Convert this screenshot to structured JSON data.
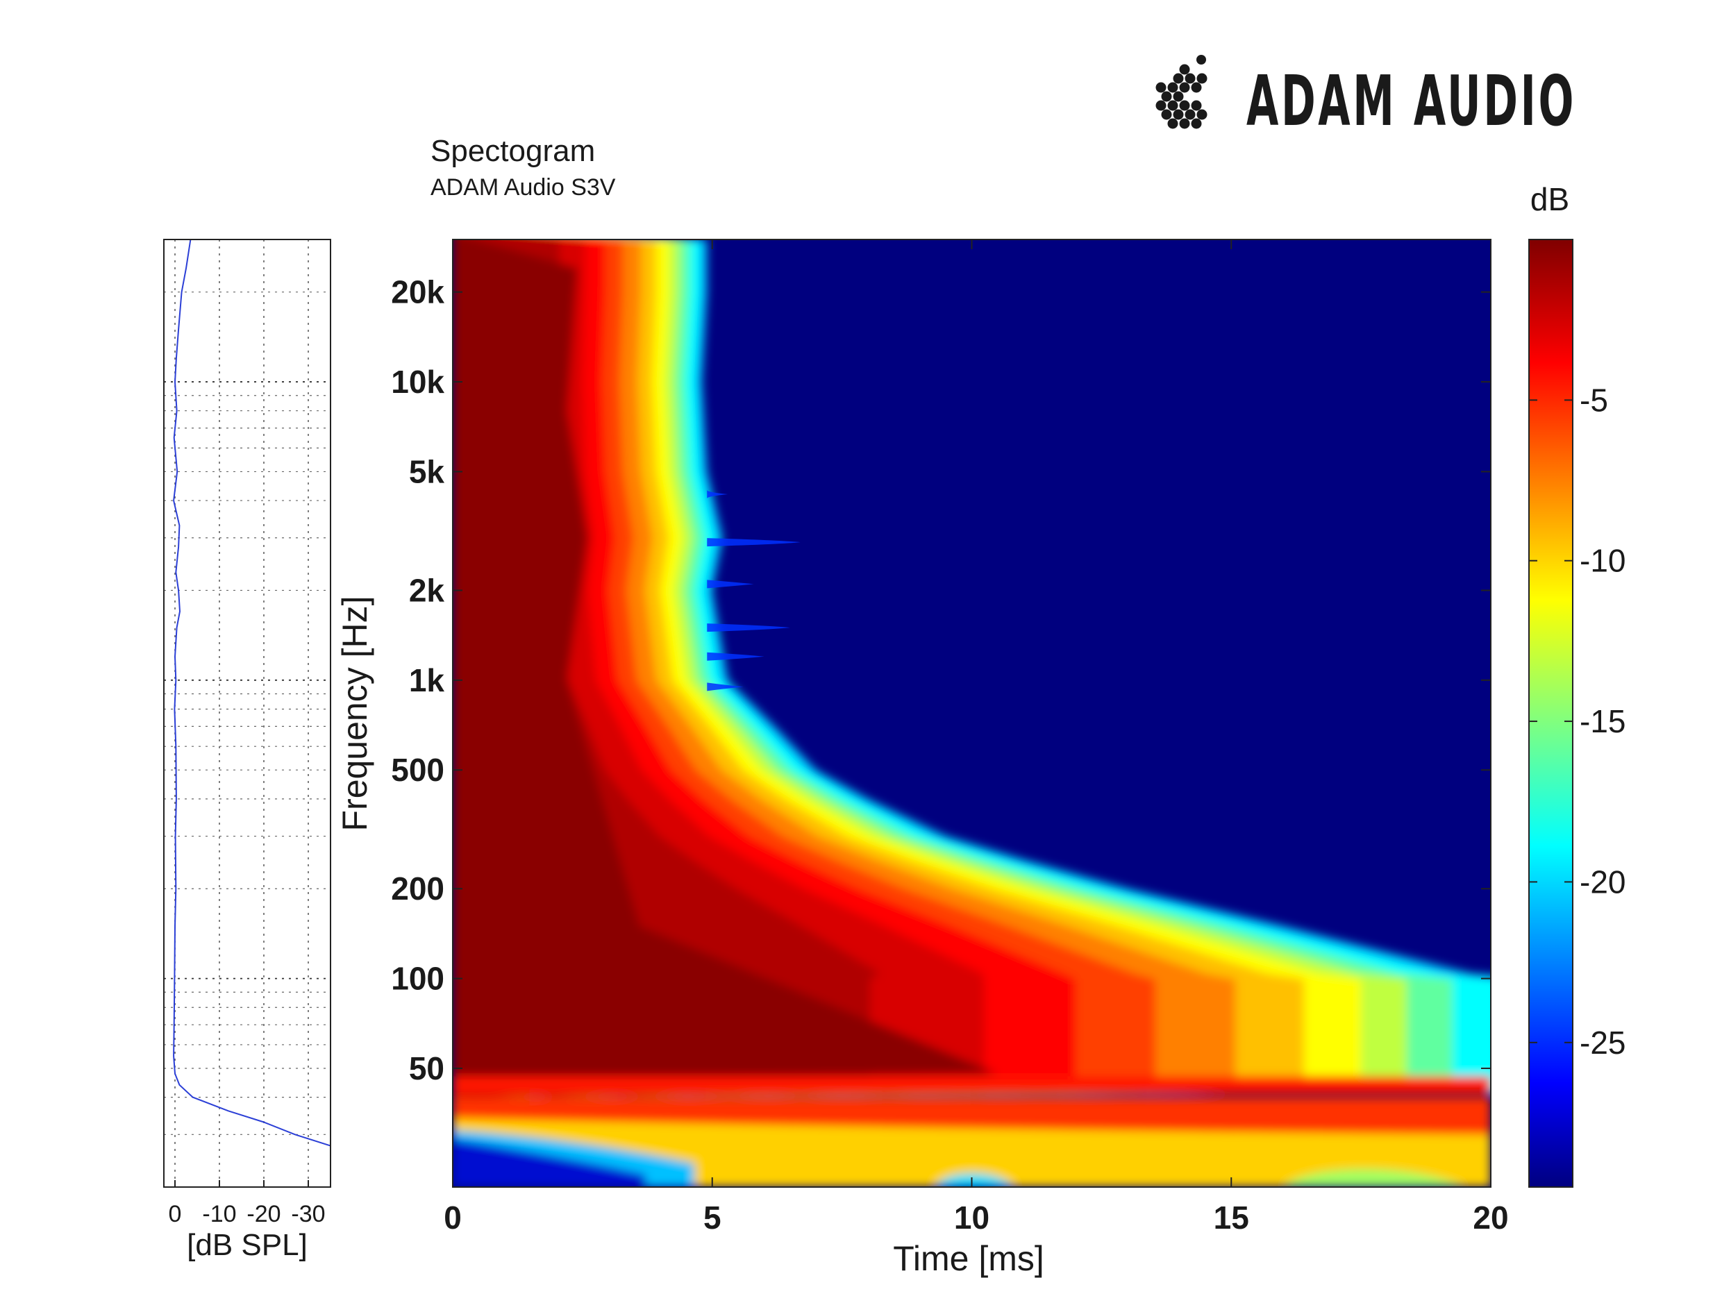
{
  "brand": {
    "name": "ADAM AUDIO",
    "logo_icon": "adam-dot-cluster-icon"
  },
  "header": {
    "title": "Spectogram",
    "subtitle": "ADAM Audio S3V"
  },
  "chart_data": [
    {
      "type": "line",
      "name": "frequency-response-side-plot",
      "xlabel": "[dB SPL]",
      "ylabel": "",
      "xlim": [
        2.5,
        -35
      ],
      "x_ticks": [
        0,
        -10,
        -20,
        -30
      ],
      "x_tick_labels": [
        "0",
        "-10",
        "-20",
        "-30"
      ],
      "y_scale": "log",
      "ylim": [
        20,
        30000
      ],
      "grid": true,
      "line_color": "#2b3fd6",
      "points": [
        {
          "freq": 30000,
          "db": -3.5
        },
        {
          "freq": 24000,
          "db": -2.5
        },
        {
          "freq": 20000,
          "db": -1.5
        },
        {
          "freq": 15000,
          "db": -0.8
        },
        {
          "freq": 12000,
          "db": -0.3
        },
        {
          "freq": 10000,
          "db": 0.0
        },
        {
          "freq": 8000,
          "db": -0.4
        },
        {
          "freq": 6500,
          "db": 0.2
        },
        {
          "freq": 5000,
          "db": -0.5
        },
        {
          "freq": 4000,
          "db": 0.3
        },
        {
          "freq": 3300,
          "db": -1.0
        },
        {
          "freq": 2800,
          "db": -0.8
        },
        {
          "freq": 2300,
          "db": -0.2
        },
        {
          "freq": 2000,
          "db": -0.8
        },
        {
          "freq": 1700,
          "db": -1.1
        },
        {
          "freq": 1500,
          "db": -0.4
        },
        {
          "freq": 1200,
          "db": 0.0
        },
        {
          "freq": 1000,
          "db": -0.2
        },
        {
          "freq": 800,
          "db": 0.1
        },
        {
          "freq": 600,
          "db": -0.2
        },
        {
          "freq": 400,
          "db": -0.3
        },
        {
          "freq": 300,
          "db": -0.1
        },
        {
          "freq": 200,
          "db": -0.2
        },
        {
          "freq": 150,
          "db": 0.0
        },
        {
          "freq": 100,
          "db": 0.1
        },
        {
          "freq": 70,
          "db": 0.2
        },
        {
          "freq": 55,
          "db": 0.3
        },
        {
          "freq": 48,
          "db": 0.0
        },
        {
          "freq": 44,
          "db": -1.0
        },
        {
          "freq": 40,
          "db": -4.0
        },
        {
          "freq": 36,
          "db": -12.0
        },
        {
          "freq": 33,
          "db": -20.0
        },
        {
          "freq": 30,
          "db": -27.0
        },
        {
          "freq": 27.5,
          "db": -35.0
        }
      ]
    },
    {
      "type": "heatmap",
      "name": "spectrogram",
      "xlabel": "Time [ms]",
      "ylabel": "Frequency [Hz]",
      "xlim": [
        0,
        20
      ],
      "x_ticks": [
        0,
        5,
        10,
        15,
        20
      ],
      "x_tick_labels": [
        "0",
        "5",
        "10",
        "15",
        "20"
      ],
      "y_scale": "log",
      "ylim": [
        20,
        30000
      ],
      "y_ticks": [
        50,
        100,
        200,
        500,
        1000,
        2000,
        5000,
        10000,
        20000
      ],
      "y_tick_labels": [
        "50",
        "100",
        "200",
        "500",
        "1k",
        "2k",
        "5k",
        "10k",
        "20k"
      ],
      "colorbar": {
        "label": "dB",
        "range": [
          -29.5,
          0
        ],
        "ticks": [
          -5,
          -10,
          -15,
          -20,
          -25
        ],
        "tick_labels": [
          "-5",
          "-10",
          "-15",
          "-20",
          "-25"
        ],
        "colormap": "jet"
      },
      "decay_time_ms_at_-20dB": [
        {
          "freq": 30000,
          "time_ms": 4.9
        },
        {
          "freq": 20000,
          "time_ms": 4.9
        },
        {
          "freq": 10000,
          "time_ms": 4.8
        },
        {
          "freq": 5000,
          "time_ms": 4.9
        },
        {
          "freq": 3000,
          "time_ms": 5.2
        },
        {
          "freq": 2000,
          "time_ms": 5.0
        },
        {
          "freq": 1000,
          "time_ms": 5.3
        },
        {
          "freq": 700,
          "time_ms": 6.2
        },
        {
          "freq": 500,
          "time_ms": 7.0
        },
        {
          "freq": 400,
          "time_ms": 8.0
        },
        {
          "freq": 300,
          "time_ms": 9.5
        },
        {
          "freq": 250,
          "time_ms": 11.0
        },
        {
          "freq": 200,
          "time_ms": 13.0
        },
        {
          "freq": 150,
          "time_ms": 16.0
        },
        {
          "freq": 100,
          "time_ms": 20.0
        },
        {
          "freq": 70,
          "time_ms": 20.0
        },
        {
          "freq": 45,
          "time_ms": 20.0
        }
      ]
    }
  ]
}
